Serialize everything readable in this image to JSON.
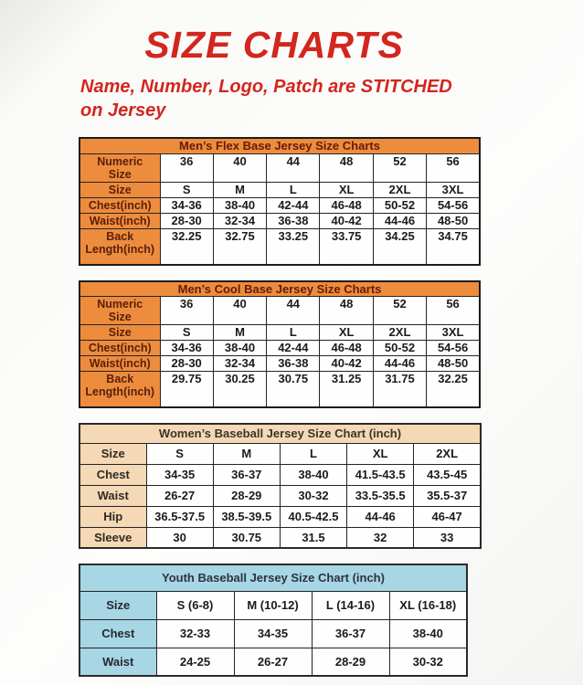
{
  "page": {
    "title": "SIZE CHARTS",
    "subtitle": "Name, Number, Logo, Patch are STITCHED on Jersey"
  },
  "colors": {
    "accent_red": "#d2261e",
    "mens_header_bg": "#ee8c3e",
    "mens_header_text": "#5e1c08",
    "womens_header_bg": "#f5d8b5",
    "youth_header_bg": "#a7d6e5",
    "cell_bg": "#fefefe",
    "border": "#242424"
  },
  "tables": [
    {
      "title": "Men’s Flex Base Jersey Size Charts",
      "rows": [
        {
          "label": "Numeric\nSize",
          "values": [
            "36",
            "40",
            "44",
            "48",
            "52",
            "56"
          ]
        },
        {
          "label": "Size",
          "values": [
            "S",
            "M",
            "L",
            "XL",
            "2XL",
            "3XL"
          ]
        },
        {
          "label": "Chest(inch)",
          "values": [
            "34-36",
            "38-40",
            "42-44",
            "46-48",
            "50-52",
            "54-56"
          ]
        },
        {
          "label": "Waist(inch)",
          "values": [
            "28-30",
            "32-34",
            "36-38",
            "40-42",
            "44-46",
            "48-50"
          ]
        },
        {
          "label": "Back\nLength(inch)",
          "values": [
            "32.25",
            "32.75",
            "33.25",
            "33.75",
            "34.25",
            "34.75"
          ]
        }
      ]
    },
    {
      "title": "Men’s Cool Base Jersey Size Charts",
      "rows": [
        {
          "label": "Numeric\nSize",
          "values": [
            "36",
            "40",
            "44",
            "48",
            "52",
            "56"
          ]
        },
        {
          "label": "Size",
          "values": [
            "S",
            "M",
            "L",
            "XL",
            "2XL",
            "3XL"
          ]
        },
        {
          "label": "Chest(inch)",
          "values": [
            "34-36",
            "38-40",
            "42-44",
            "46-48",
            "50-52",
            "54-56"
          ]
        },
        {
          "label": "Waist(inch)",
          "values": [
            "28-30",
            "32-34",
            "36-38",
            "40-42",
            "44-46",
            "48-50"
          ]
        },
        {
          "label": "Back\nLength(inch)",
          "values": [
            "29.75",
            "30.25",
            "30.75",
            "31.25",
            "31.75",
            "32.25"
          ]
        }
      ]
    },
    {
      "title": "Women’s Baseball Jersey Size Chart (inch)",
      "rows": [
        {
          "label": "Size",
          "values": [
            "S",
            "M",
            "L",
            "XL",
            "2XL"
          ]
        },
        {
          "label": "Chest",
          "values": [
            "34-35",
            "36-37",
            "38-40",
            "41.5-43.5",
            "43.5-45"
          ]
        },
        {
          "label": "Waist",
          "values": [
            "26-27",
            "28-29",
            "30-32",
            "33.5-35.5",
            "35.5-37"
          ]
        },
        {
          "label": "Hip",
          "values": [
            "36.5-37.5",
            "38.5-39.5",
            "40.5-42.5",
            "44-46",
            "46-47"
          ]
        },
        {
          "label": "Sleeve",
          "values": [
            "30",
            "30.75",
            "31.5",
            "32",
            "33"
          ]
        }
      ]
    },
    {
      "title": "Youth Baseball Jersey Size Chart (inch)",
      "rows": [
        {
          "label": "Size",
          "values": [
            "S (6-8)",
            "M (10-12)",
            "L (14-16)",
            "XL (16-18)"
          ]
        },
        {
          "label": "Chest",
          "values": [
            "32-33",
            "34-35",
            "36-37",
            "38-40"
          ]
        },
        {
          "label": "Waist",
          "values": [
            "24-25",
            "26-27",
            "28-29",
            "30-32"
          ]
        }
      ]
    }
  ]
}
